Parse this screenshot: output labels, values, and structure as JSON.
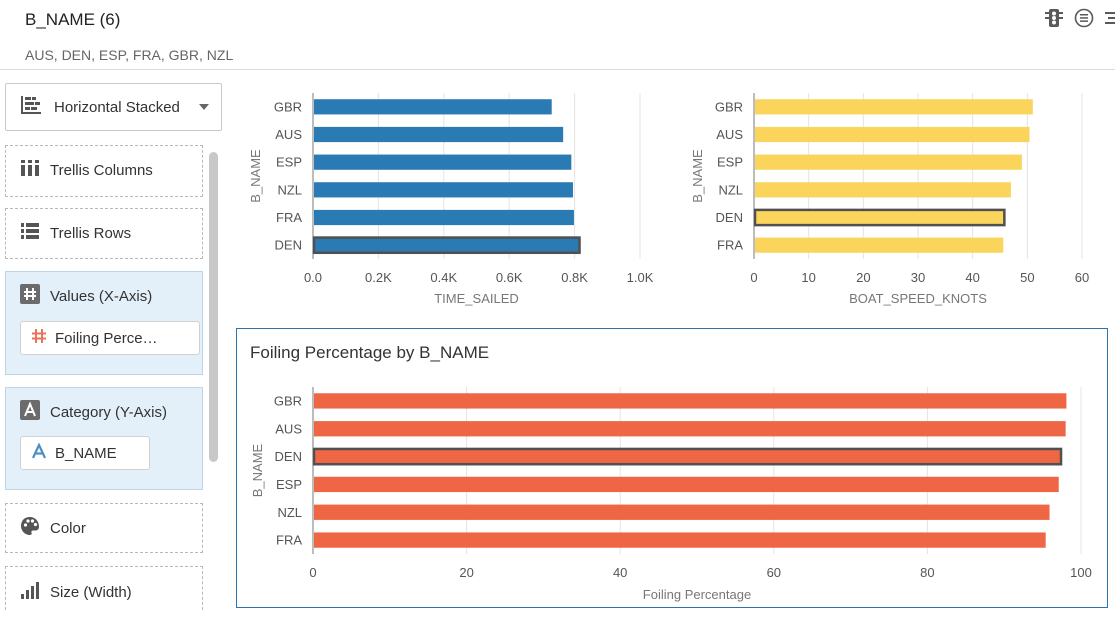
{
  "header": {
    "title": "B_NAME (6)",
    "subtitle": "AUS, DEN, ESP, FRA, GBR, NZL"
  },
  "sidebar": {
    "chart_type": "Horizontal Stacked",
    "wells": {
      "trellis_columns": "Trellis Columns",
      "trellis_rows": "Trellis Rows",
      "values": {
        "label": "Values (X-Axis)",
        "pill": "Foiling Perce…"
      },
      "category": {
        "label": "Category (Y-Axis)",
        "pill": "B_NAME"
      },
      "color": "Color",
      "size": "Size (Width)"
    }
  },
  "colors": {
    "blue": "#2a7ab4",
    "yellow": "#fad45b",
    "orange": "#ee6644",
    "accent": "#2e73a8"
  },
  "chart_data": [
    {
      "type": "bar",
      "orientation": "horizontal",
      "categories": [
        "GBR",
        "AUS",
        "ESP",
        "NZL",
        "FRA",
        "DEN"
      ],
      "values": [
        730,
        765,
        790,
        795,
        798,
        815
      ],
      "highlight": "DEN",
      "xlabel": "TIME_SAILED",
      "ylabel": "B_NAME",
      "xlim": [
        0,
        1000
      ],
      "xticks": [
        0,
        200,
        400,
        600,
        800,
        1000
      ],
      "xtick_labels": [
        "0.0",
        "0.2K",
        "0.4K",
        "0.6K",
        "0.8K",
        "1.0K"
      ],
      "color": "#2a7ab4",
      "grid": true
    },
    {
      "type": "bar",
      "orientation": "horizontal",
      "categories": [
        "GBR",
        "AUS",
        "ESP",
        "NZL",
        "DEN",
        "FRA"
      ],
      "values": [
        51,
        50.4,
        49,
        47,
        45.8,
        45.6
      ],
      "highlight": "DEN",
      "xlabel": "BOAT_SPEED_KNOTS",
      "ylabel": "B_NAME",
      "xlim": [
        0,
        60
      ],
      "xticks": [
        0,
        10,
        20,
        30,
        40,
        50,
        60
      ],
      "xtick_labels": [
        "0",
        "10",
        "20",
        "30",
        "40",
        "50",
        "60"
      ],
      "color": "#fad45b",
      "grid": true
    },
    {
      "type": "bar",
      "orientation": "horizontal",
      "title": "Foiling Percentage by B_NAME",
      "categories": [
        "GBR",
        "AUS",
        "DEN",
        "ESP",
        "NZL",
        "FRA"
      ],
      "values": [
        98.1,
        98.0,
        97.4,
        97.1,
        95.9,
        95.4
      ],
      "highlight": "DEN",
      "xlabel": "Foiling Percentage",
      "ylabel": "B_NAME",
      "xlim": [
        0,
        100
      ],
      "xticks": [
        0,
        20,
        40,
        60,
        80,
        100
      ],
      "xtick_labels": [
        "0",
        "20",
        "40",
        "60",
        "80",
        "100"
      ],
      "color": "#ee6644",
      "grid": true
    }
  ]
}
